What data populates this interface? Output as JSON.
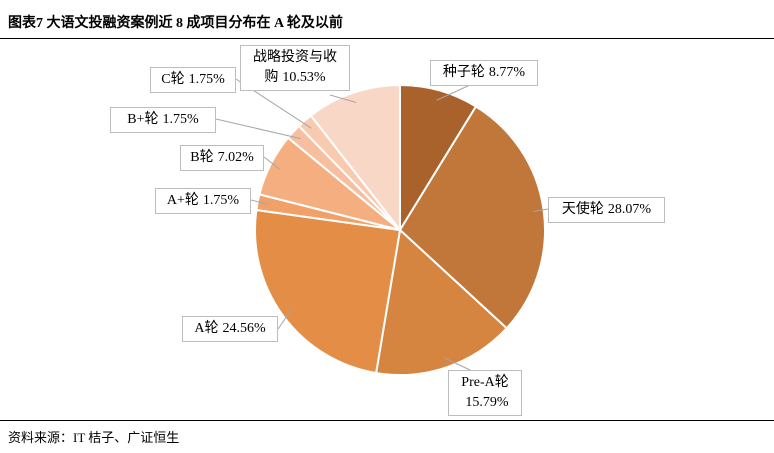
{
  "title": "图表7 大语文投融资案例近 8 成项目分布在 A 轮及以前",
  "source": "资料来源：IT 桔子、广证恒生",
  "chart_data": {
    "type": "pie",
    "categories": [
      "种子轮",
      "天使轮",
      "Pre-A轮",
      "A轮",
      "A+轮",
      "B轮",
      "B+轮",
      "C轮",
      "战略投资与收购"
    ],
    "values": [
      8.77,
      28.07,
      15.79,
      24.56,
      1.75,
      7.02,
      1.75,
      1.75,
      10.53
    ],
    "value_labels": [
      "8.77%",
      "28.07%",
      "15.79%",
      "24.56%",
      "1.75%",
      "7.02%",
      "1.75%",
      "1.75%",
      "10.53%"
    ],
    "colors": [
      "#a9622c",
      "#c1773a",
      "#d5853f",
      "#e48d46",
      "#f0a068",
      "#f4ae80",
      "#f7bfa0",
      "#f8caaf",
      "#f9d7c6"
    ]
  }
}
